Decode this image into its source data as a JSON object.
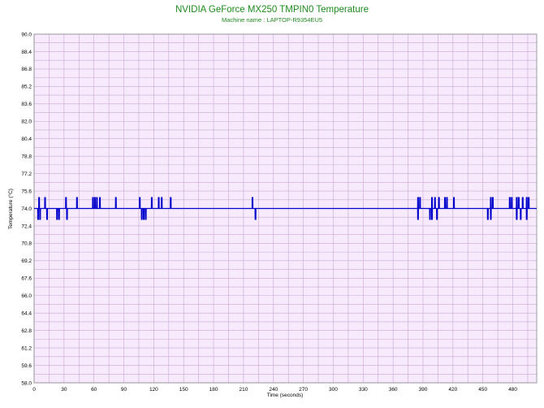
{
  "chart_data": {
    "type": "line",
    "title": "NVIDIA GeForce MX250 TMPIN0 Temperature",
    "subtitle": "Machine name : LAPTOP-R9354EU5",
    "xlabel": "Time (seconds)",
    "ylabel": "Temperature (°C)",
    "xlim": [
      0,
      504
    ],
    "ylim": [
      58.0,
      90.0
    ],
    "x_ticks": [
      0,
      30,
      60,
      90,
      120,
      150,
      180,
      210,
      240,
      270,
      300,
      330,
      360,
      390,
      420,
      450,
      480
    ],
    "y_ticks": [
      "58.0",
      "59.6",
      "61.2",
      "62.8",
      "64.4",
      "66.0",
      "67.6",
      "69.2",
      "70.8",
      "72.4",
      "74.0",
      "75.6",
      "77.2",
      "78.8",
      "80.4",
      "82.0",
      "83.6",
      "85.2",
      "86.8",
      "88.4",
      "90.0"
    ],
    "grid": true,
    "colors": {
      "line": "#0000cc",
      "plot_background": "#f6eafc",
      "grid": "#c9a8d3",
      "title": "#1f8a1f"
    },
    "series": [
      {
        "baseline": 74.0,
        "spikes_up": [
          5,
          11,
          32,
          43,
          59,
          61,
          63,
          66,
          82,
          106,
          118,
          125,
          128,
          137,
          219,
          385,
          387,
          399,
          402,
          406,
          412,
          414,
          421,
          458,
          460,
          477,
          479,
          484,
          486,
          490,
          494,
          496
        ],
        "spikes_down": [
          4,
          6,
          13,
          23,
          25,
          33,
          108,
          110,
          112,
          222,
          385,
          397,
          399,
          404,
          455,
          458,
          484,
          488,
          494
        ]
      }
    ]
  }
}
